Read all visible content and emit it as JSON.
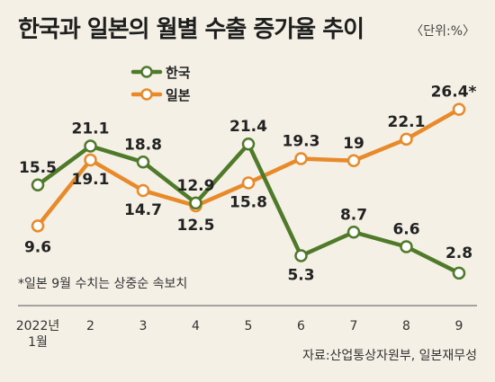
{
  "chart_data": {
    "type": "line",
    "title": "한국과 일본의 월별 수출 증가율 추이",
    "unit": "〈단위:%〉",
    "categories": [
      "2022년 1월",
      "2",
      "3",
      "4",
      "5",
      "6",
      "7",
      "8",
      "9"
    ],
    "x_tick_labels": [
      [
        "2022년",
        "1월"
      ],
      [
        "2"
      ],
      [
        "3"
      ],
      [
        "4"
      ],
      [
        "5"
      ],
      [
        "6"
      ],
      [
        "7"
      ],
      [
        "8"
      ],
      [
        "9"
      ]
    ],
    "series": [
      {
        "name": "한국",
        "color": "#4e7a2a",
        "values": [
          15.5,
          21.1,
          18.8,
          12.9,
          21.4,
          5.3,
          8.7,
          6.6,
          2.8
        ],
        "labels": [
          "15.5",
          "21.1",
          "18.8",
          "12.9",
          "21.4",
          "5.3",
          "8.7",
          "6.6",
          "2.8"
        ],
        "label_pos": [
          "above",
          "above",
          "above",
          "above",
          "above",
          "below",
          "above",
          "above",
          "above"
        ]
      },
      {
        "name": "일본",
        "color": "#e8892a",
        "values": [
          9.6,
          19.1,
          14.7,
          12.5,
          15.8,
          19.3,
          19.0,
          22.1,
          26.4
        ],
        "labels": [
          "9.6",
          "19.1",
          "14.7",
          "12.5",
          "15.8",
          "19.3",
          "19",
          "22.1",
          "26.4*"
        ],
        "label_pos": [
          "below",
          "below",
          "below",
          "below",
          "below",
          "above",
          "above",
          "above",
          "above"
        ]
      }
    ],
    "ylim": [
      0,
      30
    ],
    "grid": false,
    "legend_position": "top-left",
    "footnote": "*일본 9월 수치는 상중순 속보치",
    "source": "자료:산업통상자원부, 일본재무성"
  }
}
